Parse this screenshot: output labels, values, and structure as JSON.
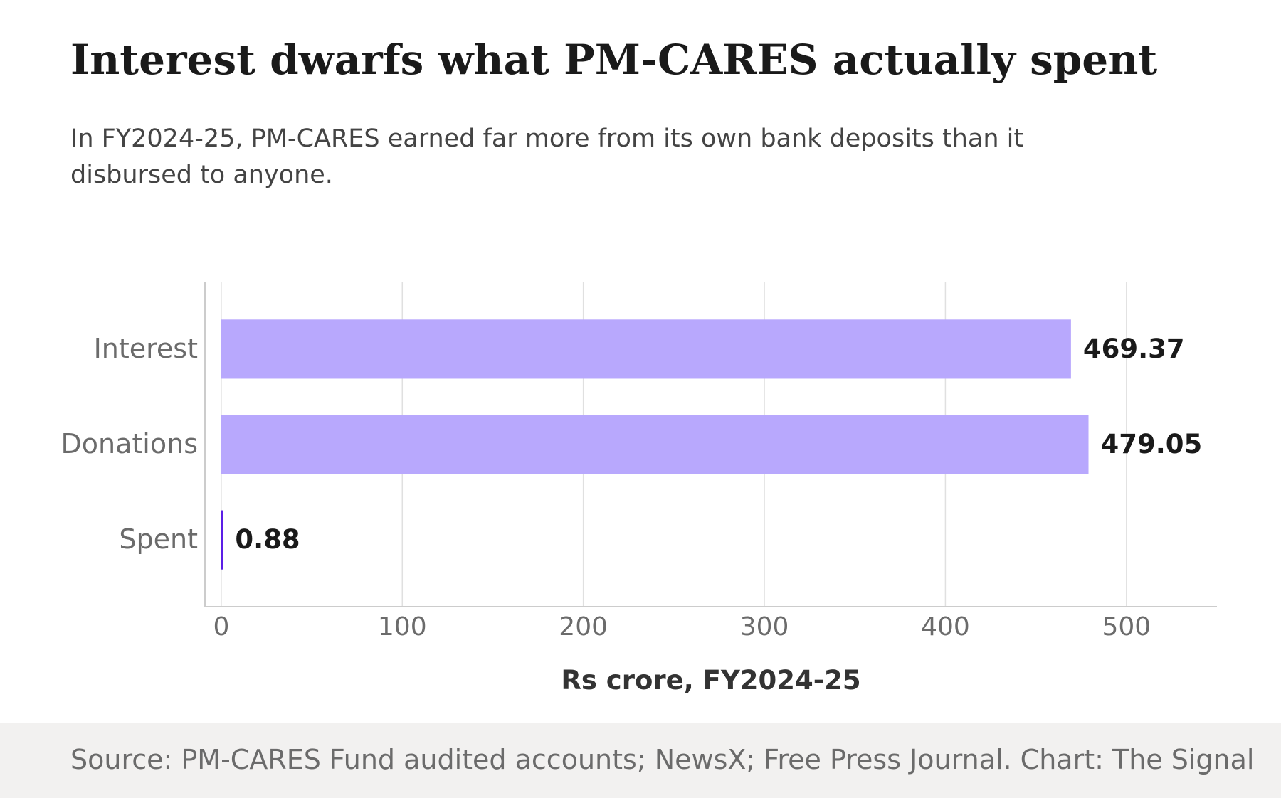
{
  "header": {
    "title": "Interest dwarfs what PM-CARES actually spent",
    "subtitle": "In FY2024-25, PM-CARES earned far more from its own bank deposits than it disbursed to anyone."
  },
  "footer": {
    "source": "Source: PM-CARES Fund audited accounts; NewsX; Free Press Journal. Chart: The Signal"
  },
  "chart_data": {
    "type": "bar",
    "orientation": "horizontal",
    "categories": [
      "Interest",
      "Donations",
      "Spent"
    ],
    "values": [
      469.37,
      479.05,
      0.88
    ],
    "value_labels": [
      "469.37",
      "479.05",
      "0.88"
    ],
    "xlabel": "Rs crore, FY2024-25",
    "ylabel": "",
    "xlim": [
      -9,
      550
    ],
    "xticks": [
      0,
      100,
      200,
      300,
      400,
      500
    ],
    "grid": true,
    "colors": {
      "bar_fill": "#b8a8fd",
      "bar_small": "#5b1ee6",
      "gridline": "#e0e0e0",
      "axis": "#cccccc",
      "tick_text": "#6b6b6b",
      "value_text": "#1a1a1a",
      "xlabel_text": "#333333"
    }
  }
}
